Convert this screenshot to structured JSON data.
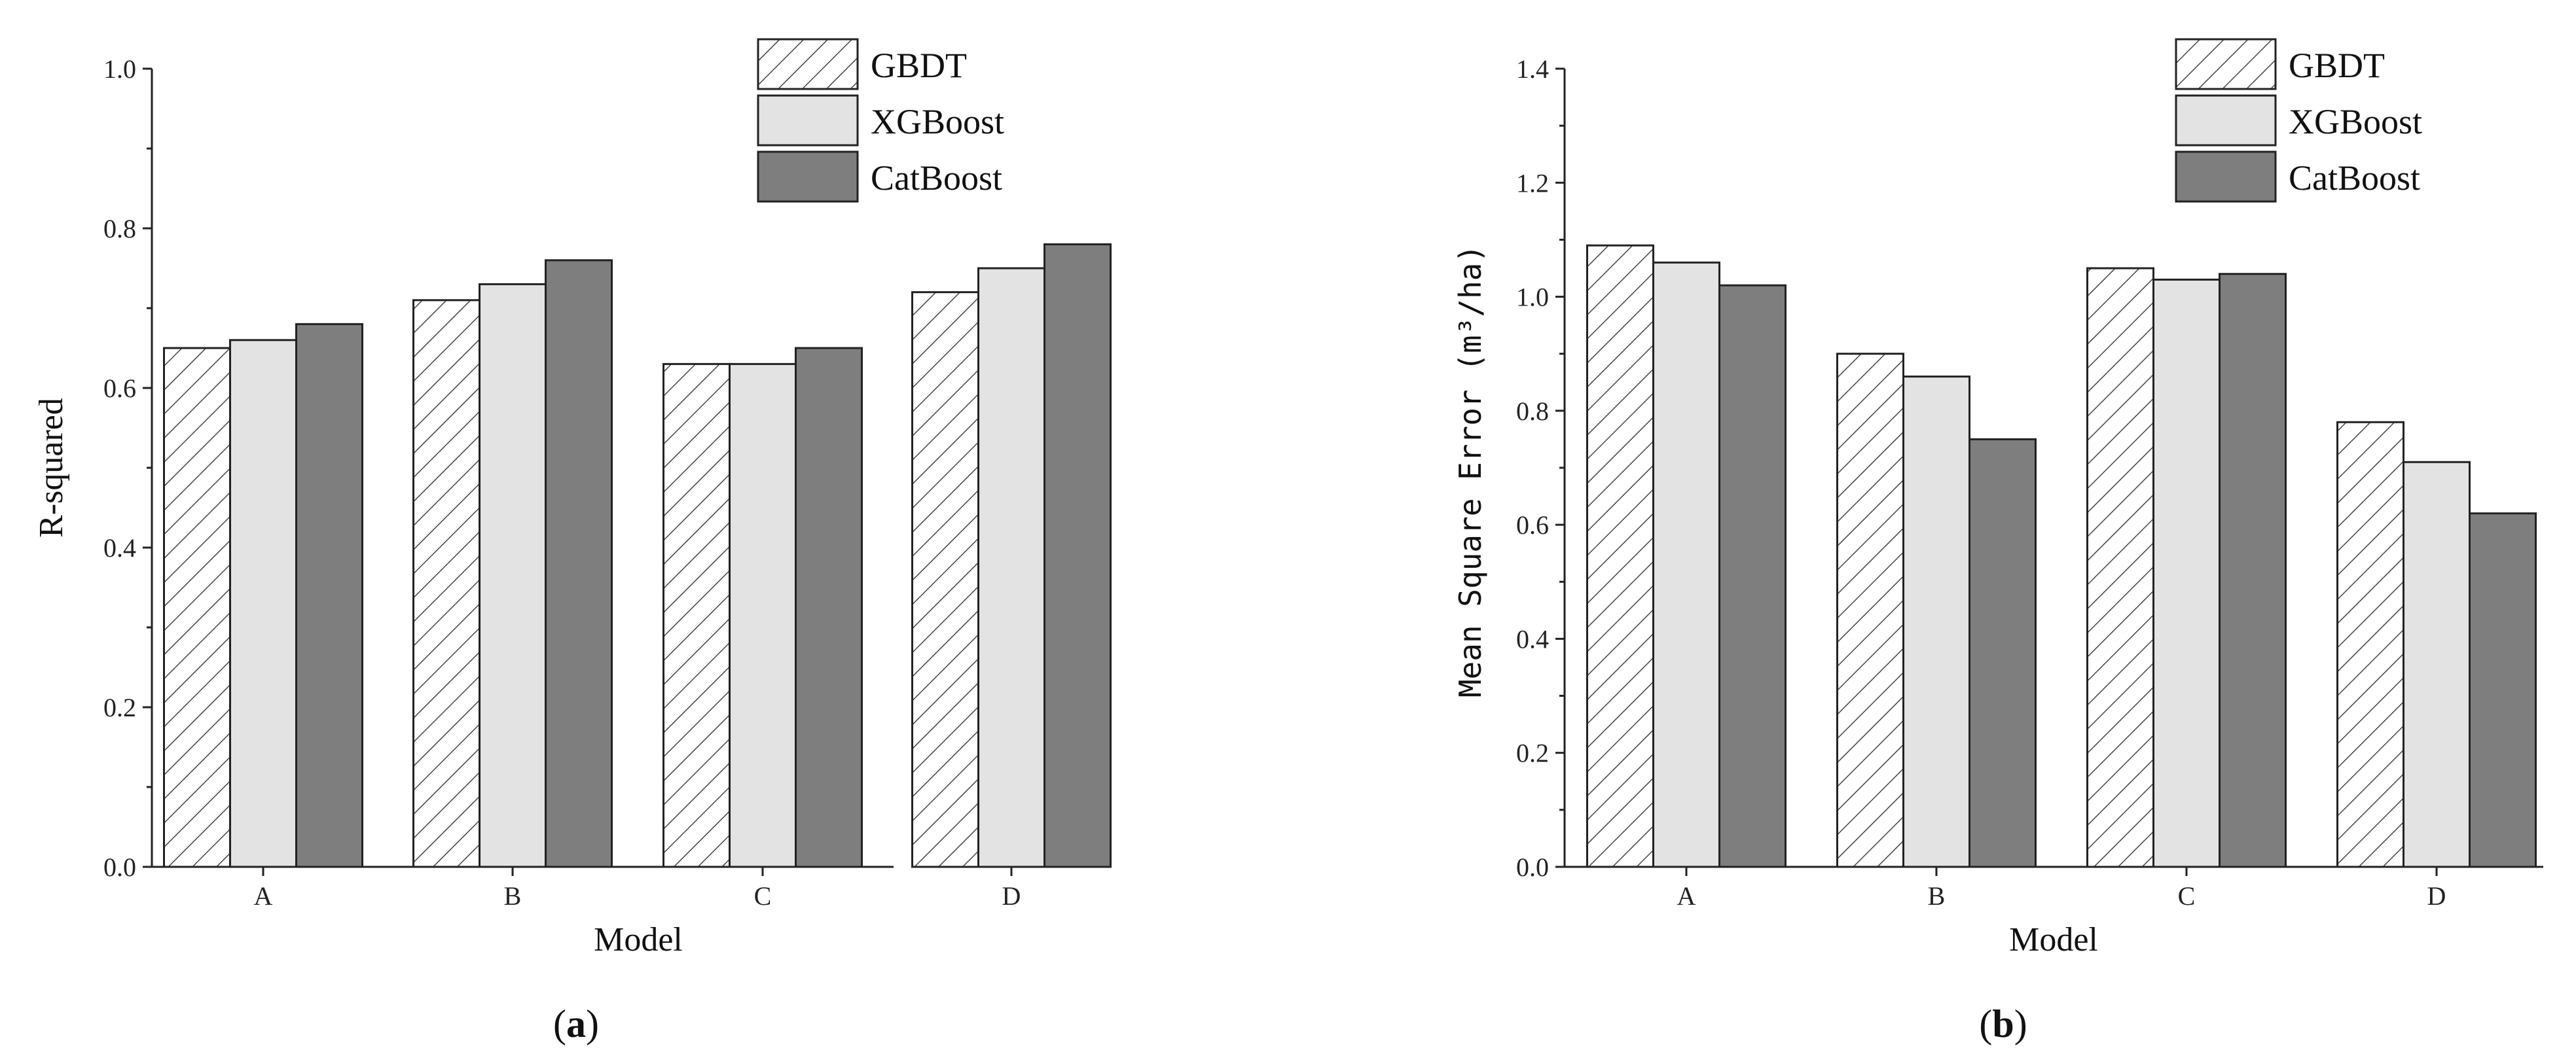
{
  "colors": {
    "gbdt_fill": "#ffffff",
    "gbdt_hatch": "#444444",
    "xgboost_fill": "#e3e3e3",
    "catboost_fill": "#7e7e7e",
    "stroke": "#222222"
  },
  "chart_data": [
    {
      "type": "bar",
      "panel_label": {
        "open": "(",
        "letter": "a",
        "close": ")"
      },
      "categories": [
        "A",
        "B",
        "C",
        "D"
      ],
      "series": [
        {
          "name": "GBDT",
          "pattern": "hatch",
          "values": [
            0.65,
            0.71,
            0.63,
            0.72
          ]
        },
        {
          "name": "XGBoost",
          "pattern": "light-gray",
          "values": [
            0.66,
            0.73,
            0.63,
            0.75
          ]
        },
        {
          "name": "CatBoost",
          "pattern": "dark-gray",
          "values": [
            0.68,
            0.76,
            0.65,
            0.78
          ]
        }
      ],
      "xlabel": "Model",
      "ylabel": "R-squared",
      "ylim": [
        0,
        1.0
      ],
      "yticks": [
        "0.0",
        "0.2",
        "0.4",
        "0.6",
        "0.8",
        "1.0"
      ],
      "ytick_values": [
        0,
        0.2,
        0.4,
        0.6,
        0.8,
        1.0
      ],
      "legend_position": "top-right",
      "grid": false
    },
    {
      "type": "bar",
      "panel_label": {
        "open": "(",
        "letter": "b",
        "close": ")"
      },
      "categories": [
        "A",
        "B",
        "C",
        "D"
      ],
      "series": [
        {
          "name": "GBDT",
          "pattern": "hatch",
          "values": [
            1.09,
            0.9,
            1.05,
            0.78
          ]
        },
        {
          "name": "XGBoost",
          "pattern": "light-gray",
          "values": [
            1.06,
            0.86,
            1.03,
            0.71
          ]
        },
        {
          "name": "CatBoost",
          "pattern": "dark-gray",
          "values": [
            1.02,
            0.75,
            1.04,
            0.62
          ]
        }
      ],
      "xlabel": "Model",
      "ylabel": "Mean Square Error (m³/ha)",
      "ylim": [
        0,
        1.4
      ],
      "yticks": [
        "0.0",
        "0.2",
        "0.4",
        "0.6",
        "0.8",
        "1.0",
        "1.2",
        "1.4"
      ],
      "ytick_values": [
        0,
        0.2,
        0.4,
        0.6,
        0.8,
        1.0,
        1.2,
        1.4
      ],
      "legend_position": "top-right",
      "grid": false
    }
  ]
}
